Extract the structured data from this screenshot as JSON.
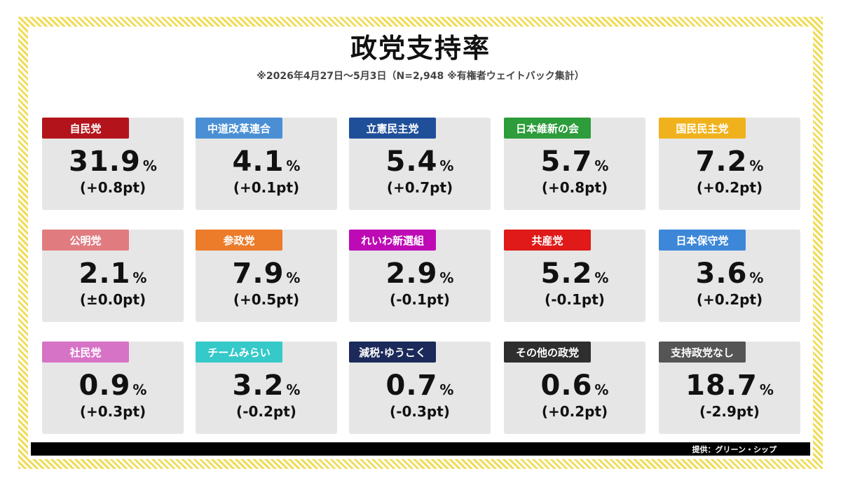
{
  "title": "政党支持率",
  "subtitle": "※2026年4月27日～5月3日（N=2,948 ※有権者ウェイトバック集計）",
  "percent_symbol": "%",
  "credit": "提供：グリーン・シップ",
  "colors": {
    "frame_stripe": "#f0dc58",
    "card_bg": "#e6e6e6"
  },
  "chart_data": {
    "type": "table",
    "title": "政党支持率",
    "subtitle": "※2026年4月27日～5月3日（N=2,948 ※有権者ウェイトバック集計）",
    "unit": "%",
    "parties": [
      {
        "name": "自民党",
        "value": 31.9,
        "value_text": "31.9",
        "change": "(+0.8pt)",
        "color": "#b3141c"
      },
      {
        "name": "中道改革連合",
        "value": 4.1,
        "value_text": "4.1",
        "change": "(+0.1pt)",
        "color": "#4a8fd4"
      },
      {
        "name": "立憲民主党",
        "value": 5.4,
        "value_text": "5.4",
        "change": "(+0.7pt)",
        "color": "#1f4f99"
      },
      {
        "name": "日本維新の会",
        "value": 5.7,
        "value_text": "5.7",
        "change": "(+0.8pt)",
        "color": "#2d9c3a"
      },
      {
        "name": "国民民主党",
        "value": 7.2,
        "value_text": "7.2",
        "change": "(+0.2pt)",
        "color": "#f0b21c"
      },
      {
        "name": "公明党",
        "value": 2.1,
        "value_text": "2.1",
        "change": "(±0.0pt)",
        "color": "#e07c80"
      },
      {
        "name": "参政党",
        "value": 7.9,
        "value_text": "7.9",
        "change": "(+0.5pt)",
        "color": "#ec7b2a"
      },
      {
        "name": "れいわ新選組",
        "value": 2.9,
        "value_text": "2.9",
        "change": "(-0.1pt)",
        "color": "#bd0ab5"
      },
      {
        "name": "共産党",
        "value": 5.2,
        "value_text": "5.2",
        "change": "(-0.1pt)",
        "color": "#e01919"
      },
      {
        "name": "日本保守党",
        "value": 3.6,
        "value_text": "3.6",
        "change": "(+0.2pt)",
        "color": "#3d87d8"
      },
      {
        "name": "社民党",
        "value": 0.9,
        "value_text": "0.9",
        "change": "(+0.3pt)",
        "color": "#d773c7"
      },
      {
        "name": "チームみらい",
        "value": 3.2,
        "value_text": "3.2",
        "change": "(-0.2pt)",
        "color": "#35c9c9"
      },
      {
        "name": "減税·ゆうこく",
        "value": 0.7,
        "value_text": "0.7",
        "change": "(-0.3pt)",
        "color": "#1b2a5a"
      },
      {
        "name": "その他の政党",
        "value": 0.6,
        "value_text": "0.6",
        "change": "(+0.2pt)",
        "color": "#2e2e2e"
      },
      {
        "name": "支持政党なし",
        "value": 18.7,
        "value_text": "18.7",
        "change": "(-2.9pt)",
        "color": "#555555"
      }
    ]
  }
}
